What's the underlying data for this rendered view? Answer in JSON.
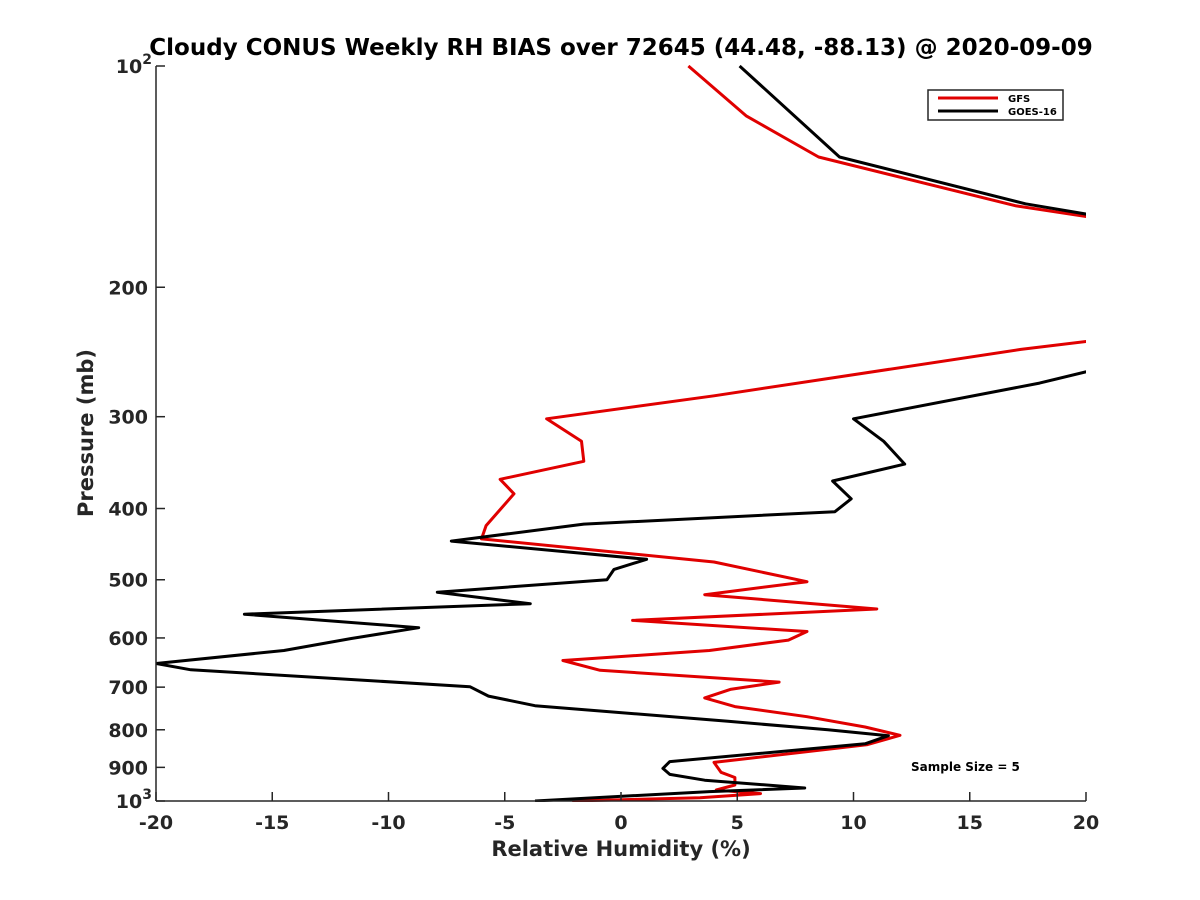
{
  "chart_data": {
    "type": "line",
    "title": "Cloudy CONUS Weekly RH BIAS over 72645 (44.48, -88.13) @ 2020-09-09",
    "xlabel": "Relative Humidity (%)",
    "ylabel": "Pressure (mb)",
    "xlim": [
      -20,
      20
    ],
    "ylim": [
      100,
      1000
    ],
    "y_scale": "log",
    "y_reversed": true,
    "grid": false,
    "legend_position": "top-right",
    "annotation": "Sample Size = 5",
    "x_ticks": [
      "-20",
      "-15",
      "-10",
      "-5",
      "0",
      "5",
      "10",
      "15",
      "20"
    ],
    "y_ticks": [
      {
        "value": 100,
        "base": "10",
        "exp": "2"
      },
      {
        "value": 200,
        "base": "200",
        "exp": ""
      },
      {
        "value": 300,
        "base": "300",
        "exp": ""
      },
      {
        "value": 400,
        "base": "400",
        "exp": ""
      },
      {
        "value": 500,
        "base": "500",
        "exp": ""
      },
      {
        "value": 600,
        "base": "600",
        "exp": ""
      },
      {
        "value": 700,
        "base": "700",
        "exp": ""
      },
      {
        "value": 800,
        "base": "800",
        "exp": ""
      },
      {
        "value": 900,
        "base": "900",
        "exp": ""
      },
      {
        "value": 1000,
        "base": "10",
        "exp": "3"
      }
    ],
    "series": [
      {
        "name": "GFS",
        "color": "#e00000",
        "segments": [
          [
            [
              2.9,
              100
            ],
            [
              5.4,
              117
            ],
            [
              8.5,
              133
            ],
            [
              17,
              155
            ],
            [
              21,
              162
            ]
          ],
          [
            [
              21,
              235
            ],
            [
              17.2,
              243
            ],
            [
              4,
              281
            ],
            [
              -3.2,
              302
            ],
            [
              -1.7,
              324
            ],
            [
              -1.6,
              345
            ],
            [
              -5.2,
              365
            ],
            [
              -4.6,
              382
            ],
            [
              -5.8,
              422
            ],
            [
              -6,
              440
            ],
            [
              4,
              473
            ],
            [
              8,
              503
            ],
            [
              3.6,
              524
            ],
            [
              11,
              548
            ],
            [
              0.5,
              568
            ],
            [
              8,
              588
            ],
            [
              7.2,
              604
            ],
            [
              3.8,
              624
            ],
            [
              -2.5,
              644
            ],
            [
              -0.9,
              664
            ],
            [
              6.8,
              689
            ],
            [
              4.7,
              705
            ],
            [
              3.6,
              724
            ],
            [
              4.9,
              744
            ],
            [
              8,
              768
            ],
            [
              10.5,
              793
            ],
            [
              12,
              814
            ],
            [
              10.6,
              838
            ],
            [
              4,
              886
            ],
            [
              4.3,
              914
            ],
            [
              4.9,
              929
            ],
            [
              4.9,
              951
            ],
            [
              4.1,
              966
            ],
            [
              6,
              977
            ],
            [
              3.4,
              990
            ],
            [
              -2.1,
              1000
            ]
          ]
        ]
      },
      {
        "name": "GOES-16",
        "color": "#000000",
        "segments": [
          [
            [
              5.1,
              100
            ],
            [
              9.4,
              133
            ],
            [
              17.4,
              154
            ],
            [
              21,
              161
            ]
          ],
          [
            [
              21,
              256
            ],
            [
              18,
              270
            ],
            [
              10,
              302
            ],
            [
              11.3,
              324
            ],
            [
              12.2,
              348
            ],
            [
              9.1,
              367
            ],
            [
              9.9,
              388
            ],
            [
              9.2,
              404
            ],
            [
              -1.6,
              420
            ],
            [
              -7.3,
              443
            ],
            [
              1.1,
              469
            ],
            [
              -0.3,
              484
            ],
            [
              -0.6,
              500
            ],
            [
              -7.9,
              520
            ],
            [
              -3.9,
              539
            ],
            [
              -16.2,
              557
            ],
            [
              -8.7,
              581
            ],
            [
              -11.6,
              601
            ],
            [
              -14.5,
              624
            ],
            [
              -20,
              650
            ],
            [
              -18.5,
              663
            ],
            [
              -6.5,
              699
            ],
            [
              -5.7,
              720
            ],
            [
              -3.7,
              742
            ],
            [
              4.6,
              779
            ],
            [
              8.9,
              800
            ],
            [
              11.5,
              815
            ],
            [
              10.5,
              836
            ],
            [
              2.1,
              884
            ],
            [
              1.8,
              903
            ],
            [
              2.1,
              920
            ],
            [
              3.6,
              937
            ],
            [
              7.9,
              960
            ],
            [
              3.8,
              971
            ],
            [
              -3.7,
              1000
            ]
          ]
        ]
      }
    ]
  }
}
